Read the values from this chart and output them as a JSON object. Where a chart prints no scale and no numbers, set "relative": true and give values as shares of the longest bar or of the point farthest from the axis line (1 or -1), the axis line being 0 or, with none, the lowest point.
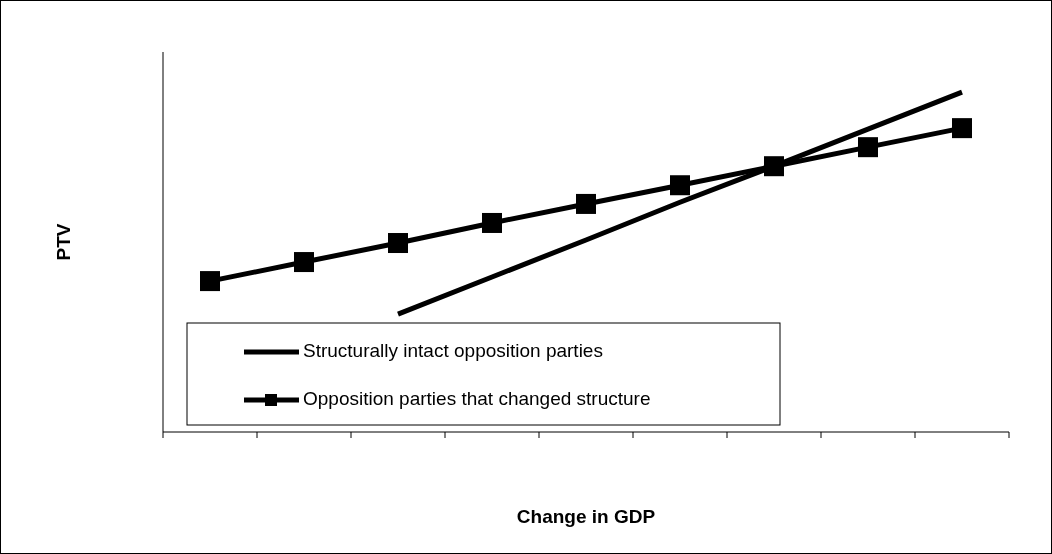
{
  "chart_data": {
    "type": "line",
    "relative": true,
    "xlabel": "Change in GDP",
    "ylabel": "PTV",
    "categories": [
      null,
      null,
      null,
      null,
      null,
      null,
      null,
      null,
      null
    ],
    "series": [
      {
        "name": "Structurally intact opposition parties",
        "color": "#000000",
        "marker": "none",
        "values": [
          null,
          null,
          0.347,
          0.456,
          0.565,
          0.676,
          0.782,
          0.891,
          1
        ]
      },
      {
        "name": "Opposition parties that changed structure",
        "color": "#000000",
        "marker": "square",
        "values": [
          0.444,
          0.5,
          0.556,
          0.615,
          0.671,
          0.726,
          0.782,
          0.838,
          0.894
        ]
      }
    ],
    "legend": "bottom left",
    "grid": false
  }
}
